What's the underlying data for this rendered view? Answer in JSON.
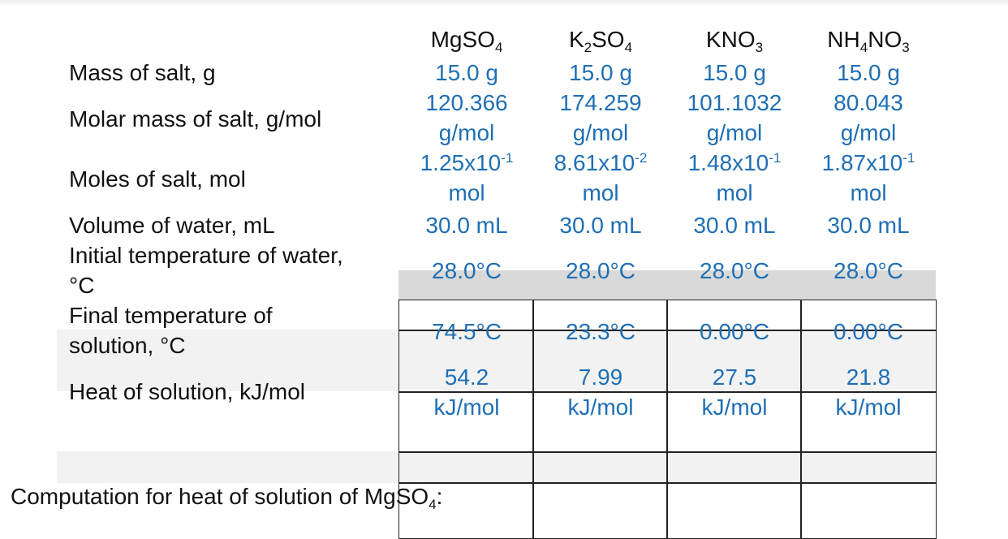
{
  "columns": [
    {
      "formula": "MgSO",
      "formula_sub": "4",
      "formula_mid": "",
      "formula_sub2": ""
    },
    {
      "formula": "K",
      "formula_sub": "2",
      "formula_mid": "SO",
      "formula_sub2": "4"
    },
    {
      "formula": "KNO",
      "formula_sub": "3",
      "formula_mid": "",
      "formula_sub2": ""
    },
    {
      "formula": "NH",
      "formula_sub": "4",
      "formula_mid": "NO",
      "formula_sub2": "3"
    }
  ],
  "rows": {
    "mass": {
      "label": "Mass of salt, g",
      "values": [
        "15.0 g",
        "15.0 g",
        "15.0 g",
        "15.0 g"
      ]
    },
    "molar_mass": {
      "label": "Molar mass of salt, g/mol",
      "values": [
        "120.366",
        "174.259",
        "101.1032",
        "80.043"
      ],
      "unit": "g/mol"
    },
    "moles": {
      "label": "Moles of salt, mol",
      "mantissa": [
        "1.25x10",
        "8.61x10",
        "1.48x10",
        "1.87x10"
      ],
      "exponent": [
        "-1",
        "-2",
        "-1",
        "-1"
      ],
      "unit": "mol"
    },
    "volume": {
      "label": "Volume of water, mL",
      "values": [
        "30.0 mL",
        "30.0 mL",
        "30.0 mL",
        "30.0 mL"
      ]
    },
    "initial_temp": {
      "label_line1": "Initial temperature of water,",
      "label_line2": "°C",
      "values": [
        "28.0°C",
        "28.0°C",
        "28.0°C",
        "28.0°C"
      ]
    },
    "final_temp": {
      "label_line1": "Final temperature of",
      "label_line2": "solution, °C",
      "values": [
        "74.5°C",
        "23.3°C",
        "0.00°C",
        "0.00°C"
      ]
    },
    "heat": {
      "label": "Heat of solution, kJ/mol",
      "values": [
        "54.2",
        "7.99",
        "27.5",
        "21.8"
      ],
      "unit": "kJ/mol"
    }
  },
  "computation": {
    "text": "Computation for heat of solution of MgSO",
    "sub": "4",
    "suffix": ":"
  }
}
